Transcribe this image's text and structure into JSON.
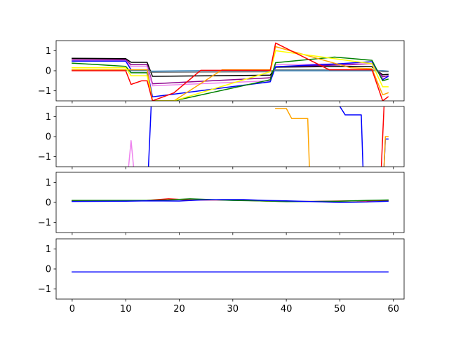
{
  "chart_data": [
    {
      "type": "line",
      "xlim": [
        -3.0,
        62.0
      ],
      "ylim": [
        -1.5,
        1.5
      ],
      "yticks": [
        1,
        0,
        -1
      ],
      "yticklabels": [
        "1",
        "0",
        "−1"
      ],
      "xticks": [
        0,
        10,
        20,
        30,
        40,
        50,
        60
      ],
      "series": [
        {
          "color": "#1f77b4",
          "x": [
            0,
            10,
            11,
            14,
            15,
            24,
            37,
            38,
            52,
            56,
            58,
            59
          ],
          "y": [
            0.02,
            0.02,
            0.0,
            0.0,
            -0.02,
            0.0,
            0.0,
            0.0,
            0.0,
            0.0,
            0.0,
            -0.02
          ]
        },
        {
          "color": "#000000",
          "x": [
            0,
            10,
            11,
            14,
            15,
            37,
            38,
            52,
            56,
            58,
            59
          ],
          "y": [
            0.62,
            0.6,
            0.42,
            0.42,
            -0.28,
            -0.22,
            0.18,
            0.22,
            0.2,
            -0.2,
            -0.18
          ]
        },
        {
          "color": "#8b008b",
          "x": [
            0,
            10,
            11,
            14,
            15,
            37,
            38,
            52,
            56,
            58,
            59
          ],
          "y": [
            0.55,
            0.55,
            0.3,
            0.3,
            -0.65,
            -0.35,
            0.2,
            0.3,
            0.35,
            -0.3,
            -0.25
          ]
        },
        {
          "color": "#ee82ee",
          "x": [
            0,
            10,
            11,
            14,
            15,
            37,
            38,
            52,
            56,
            58,
            59
          ],
          "y": [
            0.5,
            0.5,
            0.2,
            0.2,
            -0.75,
            -0.5,
            0.3,
            0.35,
            0.35,
            -0.4,
            -0.3
          ]
        },
        {
          "color": "#0000ff",
          "x": [
            0,
            10,
            11,
            14,
            15,
            37,
            38,
            50,
            56,
            58,
            59
          ],
          "y": [
            0.48,
            0.48,
            0.05,
            0.05,
            -1.3,
            -0.55,
            0.2,
            0.35,
            0.45,
            -0.45,
            -0.28
          ]
        },
        {
          "color": "#808080",
          "x": [
            0,
            10,
            11,
            14,
            15,
            37,
            38,
            52,
            56,
            58,
            59
          ],
          "y": [
            0.05,
            0.05,
            0.05,
            0.05,
            -0.08,
            -0.05,
            0.05,
            0.05,
            0.05,
            -0.05,
            -0.05
          ]
        },
        {
          "color": "#008000",
          "x": [
            0,
            10,
            11,
            14,
            15,
            19,
            37,
            38,
            49,
            56,
            58,
            59
          ],
          "y": [
            0.38,
            0.22,
            -0.1,
            -0.1,
            -1.5,
            -1.5,
            -0.45,
            0.4,
            0.68,
            0.52,
            -0.5,
            -0.42
          ]
        },
        {
          "color": "#ffa500",
          "x": [
            0,
            10,
            11,
            14,
            15,
            19,
            28,
            37,
            38,
            52,
            56,
            58,
            59
          ],
          "y": [
            0.05,
            0.05,
            0.05,
            0.05,
            -1.5,
            -1.5,
            0.05,
            0.05,
            1.2,
            0.15,
            0.1,
            -1.2,
            -1.1
          ]
        },
        {
          "color": "#ffff00",
          "x": [
            0,
            10,
            11,
            14,
            15,
            19,
            37,
            38,
            56,
            58,
            59
          ],
          "y": [
            0.15,
            0.15,
            -0.25,
            -0.25,
            -1.5,
            -1.5,
            -0.05,
            1.0,
            0.35,
            -0.8,
            -0.8
          ]
        },
        {
          "color": "#ff0000",
          "x": [
            0,
            10,
            11,
            13,
            14,
            15,
            19,
            24,
            37,
            38,
            48,
            56,
            58,
            59
          ],
          "y": [
            0.0,
            0.0,
            -0.68,
            -0.5,
            -0.5,
            -1.5,
            -1.1,
            0.02,
            0.02,
            1.38,
            0.05,
            0.05,
            -1.5,
            -1.3
          ]
        }
      ]
    },
    {
      "type": "line",
      "xlim": [
        -3.0,
        62.0
      ],
      "ylim": [
        -1.5,
        1.5
      ],
      "yticks": [
        1,
        0,
        -1
      ],
      "yticklabels": [
        "1",
        "0",
        "−1"
      ],
      "xticks": [
        0,
        10,
        20,
        30,
        40,
        50,
        60
      ],
      "series": [
        {
          "color": "#ee82ee",
          "x": [
            10,
            11,
            12
          ],
          "y": [
            -3.0,
            -0.2,
            -3.0
          ]
        },
        {
          "color": "#ffa500",
          "x": [
            38,
            40,
            41,
            44,
            44.5
          ],
          "y": [
            1.4,
            1.4,
            0.9,
            0.9,
            -3.0
          ]
        },
        {
          "color": "#0000ff",
          "x": [
            14,
            15
          ],
          "y": [
            -3.0,
            3.0
          ]
        },
        {
          "color": "#0000ff",
          "x": [
            50,
            51,
            54,
            54.5,
            58,
            58.5,
            59
          ],
          "y": [
            1.5,
            1.08,
            1.08,
            -3.0,
            -3.0,
            -0.12,
            -0.12
          ]
        },
        {
          "color": "#ff0000",
          "x": [
            57.5,
            58.5
          ],
          "y": [
            -3.0,
            3.0
          ]
        },
        {
          "color": "#ffa500",
          "x": [
            58,
            58.5,
            59
          ],
          "y": [
            -3.0,
            0.0,
            0.0
          ]
        }
      ]
    },
    {
      "type": "line",
      "xlim": [
        -3.0,
        62.0
      ],
      "ylim": [
        -1.5,
        1.5
      ],
      "yticks": [
        1,
        0,
        -1
      ],
      "yticklabels": [
        "1",
        "0",
        "−1"
      ],
      "xticks": [
        0,
        10,
        20,
        30,
        40,
        50,
        60
      ],
      "series": [
        {
          "color": "#ff0000",
          "x": [
            0,
            10,
            14,
            18,
            22,
            26,
            30,
            35,
            40,
            45,
            50,
            55,
            59
          ],
          "y": [
            0.08,
            0.08,
            0.1,
            0.18,
            0.12,
            0.12,
            0.12,
            0.08,
            0.05,
            0.05,
            0.07,
            0.08,
            0.1
          ]
        },
        {
          "color": "#008000",
          "x": [
            0,
            10,
            14,
            18,
            22,
            26,
            30,
            35,
            40,
            45,
            50,
            55,
            59
          ],
          "y": [
            0.1,
            0.1,
            0.1,
            0.12,
            0.18,
            0.14,
            0.1,
            0.08,
            0.04,
            0.05,
            0.06,
            0.1,
            0.12
          ]
        },
        {
          "color": "#0000ff",
          "x": [
            0,
            10,
            14,
            20,
            24,
            28,
            32,
            36,
            40,
            45,
            50,
            55,
            59
          ],
          "y": [
            0.05,
            0.06,
            0.08,
            0.07,
            0.12,
            0.14,
            0.14,
            0.1,
            0.08,
            0.04,
            0.0,
            0.02,
            0.06
          ]
        }
      ]
    },
    {
      "type": "line",
      "xlim": [
        -3.0,
        62.0
      ],
      "ylim": [
        -1.5,
        1.5
      ],
      "yticks": [
        1,
        0,
        -1
      ],
      "yticklabels": [
        "1",
        "0",
        "−1"
      ],
      "xticks": [
        0,
        10,
        20,
        30,
        40,
        50,
        60
      ],
      "xticklabels": [
        "0",
        "10",
        "20",
        "30",
        "40",
        "50",
        "60"
      ],
      "series": [
        {
          "color": "#0000ff",
          "x": [
            0,
            59
          ],
          "y": [
            -0.15,
            -0.15
          ]
        }
      ]
    }
  ]
}
